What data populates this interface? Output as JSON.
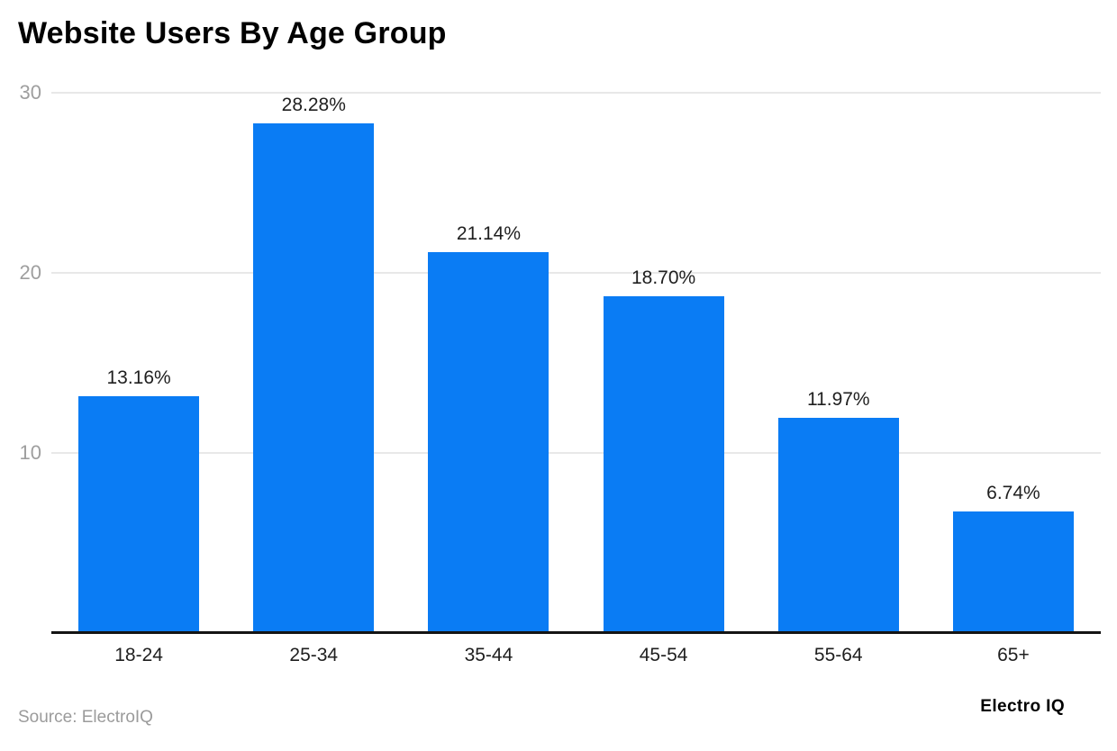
{
  "title": "Website Users By Age Group",
  "source_note": "Source: ElectroIQ",
  "brand": "Electro IQ",
  "colors": {
    "bar": "#0a7cf4",
    "gridline": "#e8e8e8",
    "axis_label": "#9e9e9e",
    "text": "#1f1f1f",
    "baseline": "#141414"
  },
  "chart_data": {
    "type": "bar",
    "title": "Website Users By Age Group",
    "categories": [
      "18-24",
      "25-34",
      "35-44",
      "45-54",
      "55-64",
      "65+"
    ],
    "values": [
      13.16,
      28.28,
      21.14,
      18.7,
      11.97,
      6.74
    ],
    "value_labels": [
      "13.16%",
      "28.28%",
      "21.14%",
      "18.70%",
      "11.97%",
      "6.74%"
    ],
    "xlabel": "",
    "ylabel": "",
    "y_ticks": [
      10,
      20,
      30
    ],
    "ylim": [
      0,
      30
    ],
    "grid": true,
    "legend": false,
    "bar_color": "#0a7cf4"
  }
}
